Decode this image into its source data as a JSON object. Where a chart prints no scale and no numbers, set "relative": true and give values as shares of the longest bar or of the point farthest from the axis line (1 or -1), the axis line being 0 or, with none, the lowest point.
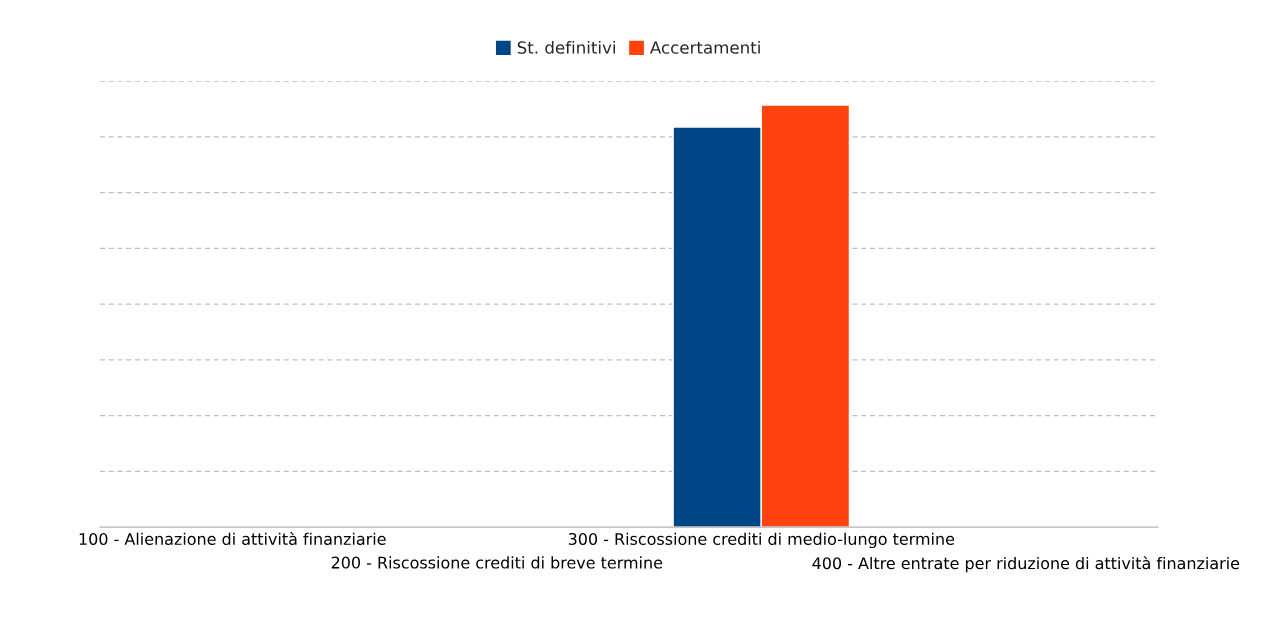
{
  "chart_data": {
    "type": "bar",
    "relative": true,
    "categories": [
      "100 - Alienazione di attività finanziarie",
      "200 - Riscossione crediti di breve termine",
      "300 - Riscossione crediti di medio-lungo termine",
      "400 - Altre entrate per riduzione di attività finanziarie"
    ],
    "series": [
      {
        "name": "St. definitivi",
        "color": "#004586",
        "values": [
          null,
          null,
          0.948,
          null
        ]
      },
      {
        "name": "Accertamenti",
        "color": "#ff420e",
        "values": [
          null,
          null,
          1,
          null
        ]
      }
    ],
    "grid": "y",
    "legend": "top"
  }
}
